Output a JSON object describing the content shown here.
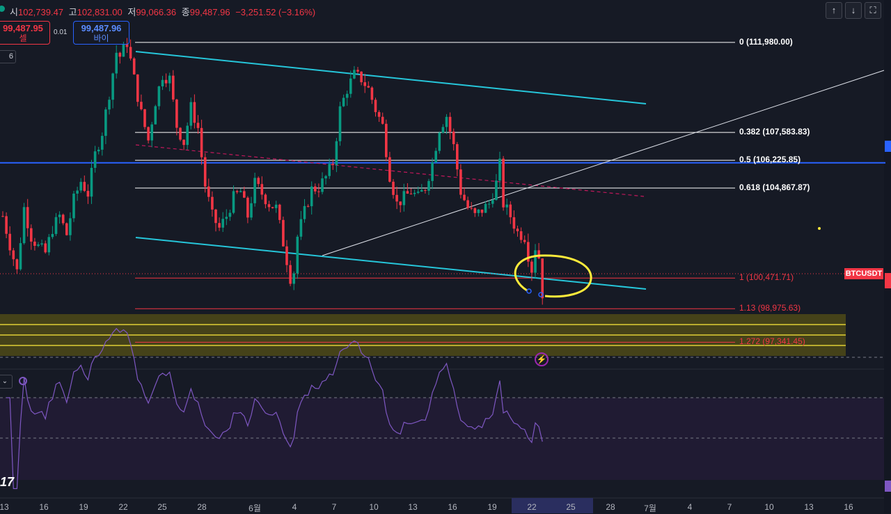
{
  "header": {
    "ohlc": [
      {
        "label": "시",
        "value": "102,739.47"
      },
      {
        "label": "고",
        "value": "102,831.00"
      },
      {
        "label": "저",
        "value": "99,066.36"
      },
      {
        "label": "종",
        "value": "99,487.96"
      }
    ],
    "change": "−3,251.52 (−3.16%)",
    "buttons": [
      "↑",
      "↓",
      "⛶"
    ]
  },
  "trade": {
    "sell_price": "99,487.95",
    "sell_label": "셀",
    "spread": "0.01",
    "buy_price": "99,487.96",
    "buy_label": "바이"
  },
  "indicator_count": "6",
  "rsi_toggle": "⌄",
  "symbol_label": "BTCUSDT",
  "colors": {
    "background": "#161a25",
    "up": "#089981",
    "down": "#f23645",
    "channel": "#26c6da",
    "fib": "#ffffff",
    "fib_ext": "#f23645",
    "highlight": "#ffeb3b",
    "rsi": "#7e57c2",
    "hline": "#2962ff"
  },
  "chart_data": {
    "type": "candlestick",
    "symbol": "BTCUSDT",
    "interval": "4H",
    "x_ticks": [
      "13",
      "16",
      "19",
      "22",
      "25",
      "28",
      "6월",
      "4",
      "7",
      "10",
      "13",
      "16",
      "19",
      "22",
      "25",
      "28",
      "7월",
      "4",
      "7",
      "10",
      "13",
      "16"
    ],
    "highlighted_x_range": [
      "22",
      "25"
    ],
    "price_range": [
      96300,
      113300
    ],
    "fib_levels": [
      {
        "ratio": "0",
        "price": 111980.0,
        "label": "0 (111,980.00)"
      },
      {
        "ratio": "0.382",
        "price": 107583.83,
        "label": "0.382 (107,583.83)"
      },
      {
        "ratio": "0.5",
        "price": 106225.85,
        "label": "0.5 (106,225.85)"
      },
      {
        "ratio": "0.618",
        "price": 104867.87,
        "label": "0.618 (104,867.87)"
      },
      {
        "ratio": "1",
        "price": 100471.71,
        "label": "1 (100,471.71)"
      },
      {
        "ratio": "1.13",
        "price": 98975.63,
        "label": "1.13 (98,975.63)"
      },
      {
        "ratio": "1.272",
        "price": 97341.45,
        "label": "1.272 (97,341.45)"
      }
    ],
    "horizontal_line_price": 106100,
    "close_price": 99487.96,
    "rsi": {
      "range": [
        0,
        100
      ],
      "bands": [
        70,
        50,
        30
      ]
    },
    "price_path": [
      [
        0,
        103500
      ],
      [
        2,
        102100
      ],
      [
        4,
        100800
      ],
      [
        6,
        103900
      ],
      [
        8,
        102500
      ],
      [
        10,
        102000
      ],
      [
        12,
        101700
      ],
      [
        14,
        102900
      ],
      [
        16,
        103500
      ],
      [
        18,
        102600
      ],
      [
        20,
        104300
      ],
      [
        22,
        105200
      ],
      [
        24,
        104600
      ],
      [
        26,
        106500
      ],
      [
        28,
        107600
      ],
      [
        30,
        109500
      ],
      [
        32,
        111500
      ],
      [
        33,
        111300
      ],
      [
        35,
        111980
      ],
      [
        37,
        110200
      ],
      [
        39,
        108500
      ],
      [
        41,
        107200
      ],
      [
        43,
        109100
      ],
      [
        45,
        110400
      ],
      [
        47,
        110200
      ],
      [
        49,
        107900
      ],
      [
        51,
        107100
      ],
      [
        53,
        108800
      ],
      [
        55,
        107800
      ],
      [
        57,
        105000
      ],
      [
        59,
        103500
      ],
      [
        61,
        102900
      ],
      [
        63,
        103500
      ],
      [
        65,
        104400
      ],
      [
        67,
        104700
      ],
      [
        69,
        103500
      ],
      [
        71,
        105100
      ],
      [
        73,
        104600
      ],
      [
        75,
        104100
      ],
      [
        77,
        103900
      ],
      [
        79,
        102200
      ],
      [
        81,
        100500
      ],
      [
        82,
        100800
      ],
      [
        83,
        102500
      ],
      [
        85,
        103700
      ],
      [
        87,
        104800
      ],
      [
        89,
        104900
      ],
      [
        91,
        105400
      ],
      [
        93,
        106100
      ],
      [
        95,
        108700
      ],
      [
        97,
        109700
      ],
      [
        99,
        110400
      ],
      [
        101,
        110200
      ],
      [
        103,
        109700
      ],
      [
        105,
        108700
      ],
      [
        107,
        107900
      ],
      [
        109,
        105500
      ],
      [
        111,
        104100
      ],
      [
        113,
        104400
      ],
      [
        115,
        104700
      ],
      [
        117,
        104400
      ],
      [
        119,
        104900
      ],
      [
        121,
        106100
      ],
      [
        123,
        107800
      ],
      [
        125,
        108400
      ],
      [
        127,
        106900
      ],
      [
        129,
        104700
      ],
      [
        131,
        103900
      ],
      [
        133,
        103500
      ],
      [
        135,
        103800
      ],
      [
        137,
        104100
      ],
      [
        139,
        105100
      ],
      [
        140,
        106000
      ],
      [
        141,
        104100
      ],
      [
        143,
        103500
      ],
      [
        145,
        102700
      ],
      [
        147,
        102500
      ],
      [
        148,
        101600
      ],
      [
        149,
        100900
      ],
      [
        150,
        102000
      ],
      [
        151,
        101500
      ],
      [
        152,
        99500
      ]
    ],
    "annotations": [
      "descending channel",
      "ascending trendline",
      "dashed midline",
      "circled breakdown zone",
      "support box"
    ]
  }
}
